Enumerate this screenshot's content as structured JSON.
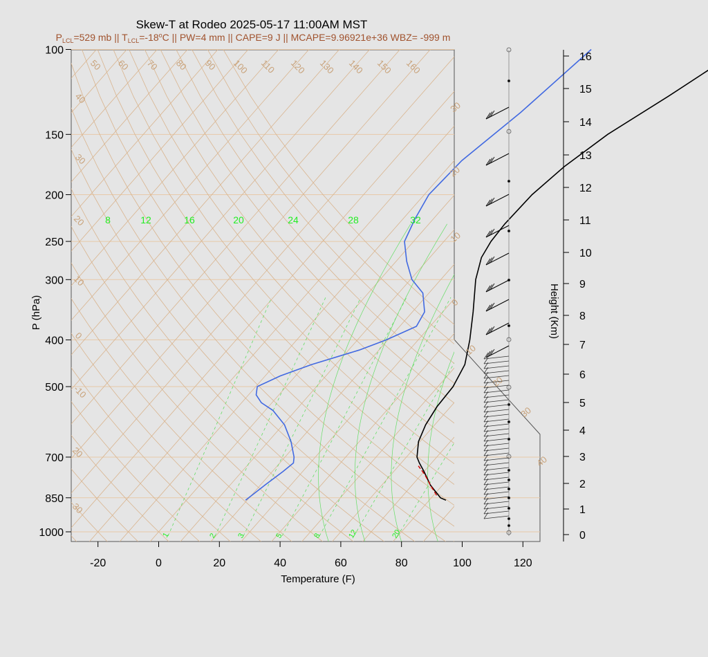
{
  "chart_data": {
    "type": "line",
    "title": "Skew-T at Rodeo 2025-05-17 11:00AM MST",
    "subtitle": {
      "p_lcl_sym": "P",
      "p_lcl_sub": "LCL",
      "p_lcl_val": "=529 mb ||",
      "t_lcl_sym": "T",
      "t_lcl_sub": "LCL",
      "t_lcl_val": "=-18",
      "deg": "o",
      "rest": "C || PW=4 mm || CAPE=9 J || MCAPE=9.96921e+36 WBZ= -999 m"
    },
    "xlabel": "Temperature (F)",
    "ylabel": "P (hPa)",
    "y2label": "Height (Km)",
    "x_ticks": [
      "-20",
      "0",
      "20",
      "40",
      "60",
      "80",
      "100",
      "120"
    ],
    "x_tick_values": [
      -20,
      0,
      20,
      40,
      60,
      80,
      100,
      120
    ],
    "xlim": [
      -28,
      125
    ],
    "y_ticks": [
      "100",
      "150",
      "200",
      "250",
      "300",
      "400",
      "500",
      "700",
      "850",
      "1000"
    ],
    "y_tick_values": [
      100,
      150,
      200,
      250,
      300,
      400,
      500,
      700,
      850,
      1000
    ],
    "ylim": [
      100,
      1050
    ],
    "height_ticks": [
      "0",
      "1",
      "2",
      "3",
      "4",
      "5",
      "6",
      "7",
      "8",
      "9",
      "10",
      "11",
      "12",
      "13",
      "14",
      "15",
      "16"
    ],
    "isotherm_labels": [
      "50",
      "60",
      "70",
      "80",
      "90",
      "100",
      "110",
      "120",
      "130",
      "140",
      "150",
      "160"
    ],
    "isotherm_labels_left": [
      "40",
      "30",
      "20",
      "10",
      "0",
      "-10",
      "20",
      "30"
    ],
    "mixing_ratio_labels_top": [
      "8",
      "12",
      "16",
      "20",
      "24",
      "28",
      "32"
    ],
    "mixing_ratio_labels_bottom": [
      "1",
      "2",
      "3",
      "5",
      "8",
      "12",
      "20"
    ],
    "adiabat_labels_right": [
      "30",
      "20",
      "10",
      "0",
      "10",
      "20",
      "30",
      "40"
    ],
    "series": [
      {
        "color": "#000000",
        "values_pressure": [
          860,
          850,
          800,
          750,
          720,
          700,
          650,
          600,
          550,
          500,
          450,
          400,
          350,
          300,
          270,
          250,
          230,
          200,
          175,
          150,
          125,
          100
        ],
        "values_temp_f": [
          85.5,
          83,
          76,
          70,
          66,
          63.5,
          59.5,
          57,
          55.5,
          55,
          52.5,
          47,
          40,
          31.5,
          27,
          25.5,
          25,
          25.5,
          28,
          33,
          42,
          52
        ]
      },
      {
        "color": "#4169e1",
        "values_pressure": [
          860,
          800,
          750,
          720,
          700,
          650,
          600,
          560,
          540,
          520,
          500,
          475,
          450,
          420,
          400,
          375,
          350,
          320,
          300,
          275,
          250,
          225,
          200,
          170,
          135,
          100
        ],
        "values_temp_f": [
          19.5,
          21.5,
          23.5,
          24.5,
          23,
          17.5,
          10.5,
          2.5,
          -3.5,
          -7.5,
          -9.5,
          -5,
          2,
          13.5,
          19.5,
          25.5,
          24,
          18,
          10.5,
          3.5,
          -3,
          -6,
          -8.5,
          -7.5,
          -2,
          3
        ]
      },
      {
        "color": "#cc0000",
        "values_pressure": [
          840,
          800,
          760,
          730
        ],
        "values_temp_f": [
          81,
          76,
          71,
          66.5
        ]
      }
    ]
  }
}
